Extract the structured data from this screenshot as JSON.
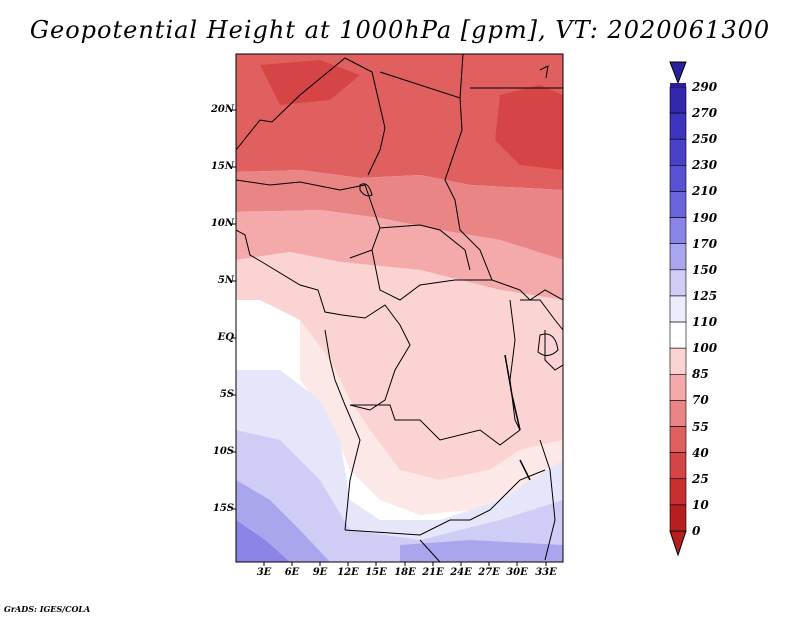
{
  "title": "Geopotential Height at 1000hPa [gpm], VT: 2020061300",
  "credit": "GrADS: IGES/COLA",
  "map": {
    "latitude_labels": [
      "20N",
      "15N",
      "10N",
      "5N",
      "EQ",
      "5S",
      "10S",
      "15S"
    ],
    "longitude_labels": [
      "3E",
      "6E",
      "9E",
      "12E",
      "15E",
      "18E",
      "21E",
      "24E",
      "27E",
      "30E",
      "33E"
    ],
    "variable": "Geopotential Height",
    "level": "1000hPa",
    "units": "gpm",
    "valid_time": "2020061300"
  },
  "colorbar": {
    "labels": [
      "290",
      "270",
      "250",
      "230",
      "210",
      "190",
      "170",
      "150",
      "125",
      "110",
      "100",
      "85",
      "70",
      "55",
      "40",
      "25",
      "10",
      "0"
    ],
    "colors": [
      "#2a1f9a",
      "#3327ad",
      "#3d33bd",
      "#4a41c8",
      "#5a52d3",
      "#6a64dc",
      "#8a84e6",
      "#aaa6ee",
      "#cfccf6",
      "#ececfc",
      "#ffffff",
      "#fbd3d3",
      "#f4aaaa",
      "#ea8585",
      "#e06060",
      "#d64545",
      "#c83030",
      "#b51e1e"
    ]
  }
}
